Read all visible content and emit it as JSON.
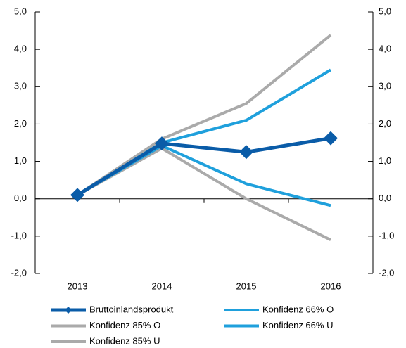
{
  "chart_data": {
    "type": "line",
    "categories": [
      "2013",
      "2014",
      "2015",
      "2016"
    ],
    "series": [
      {
        "name": "Bruttoinlandsprodukt",
        "color": "#0a5ca8",
        "marker": "diamond",
        "values": [
          0.1,
          1.48,
          1.25,
          1.62
        ]
      },
      {
        "name": "Konfidenz 66% O",
        "color": "#1fa0dc",
        "values": [
          0.1,
          1.5,
          2.1,
          3.45
        ]
      },
      {
        "name": "Konfidenz 85% O",
        "color": "#aaaaaa",
        "values": [
          0.1,
          1.6,
          2.55,
          4.38
        ]
      },
      {
        "name": "Konfidenz 66% U",
        "color": "#1fa0dc",
        "values": [
          0.1,
          1.42,
          0.4,
          -0.18
        ]
      },
      {
        "name": "Konfidenz 85% U",
        "color": "#aaaaaa",
        "values": [
          0.1,
          1.35,
          0.0,
          -1.1
        ]
      }
    ],
    "ylim": [
      -2,
      5
    ],
    "yticks": [
      {
        "value": -2,
        "label": "-2,0"
      },
      {
        "value": -1,
        "label": "-1,0"
      },
      {
        "value": 0,
        "label": "0,0"
      },
      {
        "value": 1,
        "label": "1,0"
      },
      {
        "value": 2,
        "label": "2,0"
      },
      {
        "value": 3,
        "label": "3,0"
      },
      {
        "value": 4,
        "label": "4,0"
      },
      {
        "value": 5,
        "label": "5,0"
      }
    ],
    "y2lim": [
      -2,
      5
    ],
    "y2ticks": [
      {
        "value": -2,
        "label": "-2,0"
      },
      {
        "value": -1,
        "label": "-1,0"
      },
      {
        "value": 0,
        "label": "0,0"
      },
      {
        "value": 1,
        "label": "1,0"
      },
      {
        "value": 2,
        "label": "2,0"
      },
      {
        "value": 3,
        "label": "3,0"
      },
      {
        "value": 4,
        "label": "4,0"
      },
      {
        "value": 5,
        "label": "5,0"
      }
    ],
    "grid": false,
    "legend": "bottom"
  }
}
